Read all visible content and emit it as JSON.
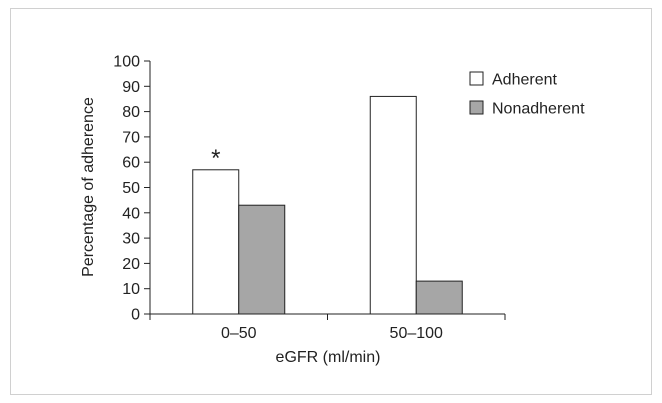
{
  "chart_data": {
    "type": "bar",
    "categories": [
      "0–50",
      "50–100"
    ],
    "series": [
      {
        "name": "Adherent",
        "values": [
          57,
          86
        ],
        "color": "#ffffff"
      },
      {
        "name": "Nonadherent",
        "values": [
          43,
          13
        ],
        "color": "#a6a6a6"
      }
    ],
    "annotations": [
      {
        "category": "0–50",
        "series": "Adherent",
        "text": "*"
      }
    ],
    "xlabel": "eGFR (ml/min)",
    "ylabel": "Percentage of adherence",
    "ylim": [
      0,
      100
    ],
    "yticks": [
      0,
      10,
      20,
      30,
      40,
      50,
      60,
      70,
      80,
      90,
      100
    ],
    "grid": false,
    "legend_position": "top-right"
  }
}
